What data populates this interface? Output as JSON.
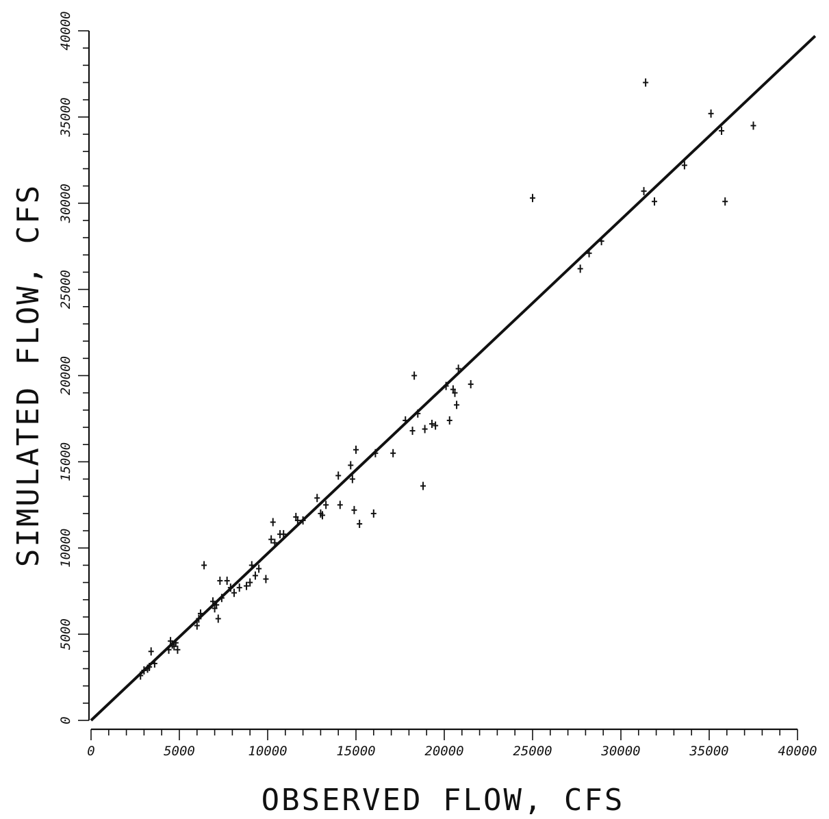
{
  "chart_data": {
    "type": "scatter",
    "title": "",
    "xlabel": "OBSERVED FLOW, CFS",
    "ylabel": "SIMULATED FLOW, CFS",
    "xlim": [
      0,
      40000
    ],
    "ylim": [
      0,
      40000
    ],
    "x_ticks": [
      "0",
      "5000",
      "10000",
      "15000",
      "20000",
      "25000",
      "30000",
      "35000",
      "40000"
    ],
    "y_ticks": [
      "0",
      "5000",
      "10000",
      "15000",
      "20000",
      "25000",
      "30000",
      "35000",
      "40000"
    ],
    "x_tick_values": [
      0,
      5000,
      10000,
      15000,
      20000,
      25000,
      30000,
      35000,
      40000
    ],
    "y_tick_values": [
      0,
      5000,
      10000,
      15000,
      20000,
      25000,
      30000,
      35000,
      40000
    ],
    "minor_tick_step": 1000,
    "grid": false,
    "legend": "none",
    "colors": {
      "ink": "#111111",
      "background": "#ffffff"
    },
    "fit_line": {
      "x": [
        0,
        41000
      ],
      "y": [
        0,
        39700
      ]
    },
    "points": {
      "x": [
        2800,
        3000,
        3200,
        3300,
        3400,
        3600,
        4400,
        4500,
        4600,
        4700,
        4800,
        4900,
        6000,
        6100,
        6200,
        6400,
        6900,
        7000,
        7100,
        7200,
        7300,
        7400,
        7700,
        7900,
        8100,
        8400,
        8800,
        9000,
        9100,
        9300,
        9500,
        9900,
        10200,
        10300,
        10400,
        10700,
        10900,
        11600,
        11700,
        12000,
        12800,
        13000,
        13100,
        13300,
        14000,
        14100,
        14700,
        14800,
        14900,
        15000,
        15200,
        16000,
        16100,
        17100,
        17800,
        18200,
        18300,
        18500,
        18800,
        18900,
        19300,
        19500,
        20100,
        20300,
        20500,
        20600,
        20700,
        20800,
        21500,
        25000,
        27700,
        28200,
        28900,
        31300,
        31400,
        31900,
        33600,
        35100,
        35700,
        35900,
        37500
      ],
      "y": [
        2600,
        2900,
        3000,
        3100,
        4000,
        3300,
        4100,
        4600,
        4400,
        4300,
        4500,
        4100,
        5500,
        5900,
        6200,
        9000,
        6900,
        6500,
        6700,
        5900,
        8100,
        7100,
        8100,
        7700,
        7400,
        7700,
        7800,
        8000,
        9000,
        8400,
        8800,
        8200,
        10500,
        11500,
        10300,
        10800,
        10800,
        11800,
        11600,
        11600,
        12900,
        12000,
        11900,
        12500,
        14200,
        12500,
        14800,
        14000,
        12200,
        15700,
        11400,
        12000,
        15500,
        15500,
        17400,
        16800,
        20000,
        17800,
        13600,
        16900,
        17200,
        17100,
        19400,
        17400,
        19200,
        19000,
        18300,
        20400,
        19500,
        30300,
        26200,
        27100,
        27800,
        30700,
        37000,
        30100,
        32200,
        35200,
        34200,
        30100,
        34500
      ]
    }
  }
}
